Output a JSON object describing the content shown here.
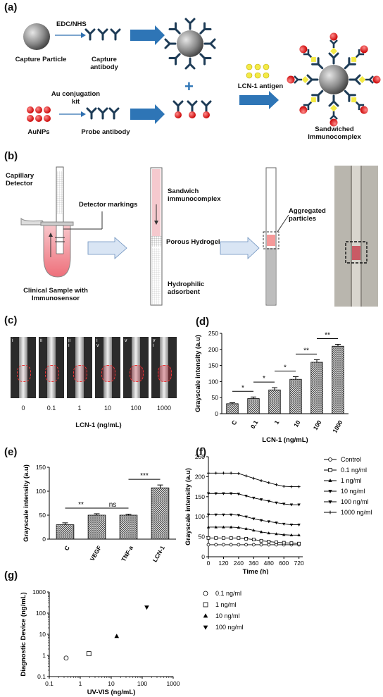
{
  "panels": {
    "a": {
      "label": "(a)",
      "edc": "EDC/NHS",
      "capture_particle": "Capture Particle",
      "capture_antibody": "Capture\nantibody",
      "au_conj": "Au conjugation\nkit",
      "aunps": "AuNPs",
      "probe_antibody": "Probe antibody",
      "lcn1_antigen": "LCN-1 antigen",
      "sandwiched": "Sandwiched\nImmunocomplex"
    },
    "b": {
      "label": "(b)",
      "capillary_detector": "Capillary\nDetector",
      "detector_markings": "Detector markings",
      "clinical_sample": "Clinical Sample with\nImmunosensor",
      "sandwich_complex": "Sandwich\nimmunocomplex",
      "porous_hydrogel": "Porous Hydrogel",
      "hydrophilic": "Hydrophilic\nadsorbent",
      "aggregated": "Aggregated\nparticles"
    },
    "c": {
      "label": "(c)",
      "numerals": [
        "i",
        "ii",
        "ii\ni",
        "i\nv",
        "v",
        "v\ni"
      ],
      "concentrations": [
        "0",
        "0.1",
        "1",
        "10",
        "100",
        "1000"
      ],
      "xlabel": "LCN-1 (ng/mL)"
    },
    "d": {
      "label": "(d)"
    },
    "e": {
      "label": "(e)"
    },
    "f": {
      "label": "(f)"
    },
    "g": {
      "label": "(g)"
    }
  },
  "chart_data": [
    {
      "id": "d",
      "type": "bar",
      "categories": [
        "C",
        "0.1",
        "1",
        "10",
        "100",
        "1000"
      ],
      "values": [
        31,
        47,
        74,
        107,
        160,
        210
      ],
      "errors": [
        3,
        5,
        7,
        8,
        8,
        6
      ],
      "significance": [
        [
          "*",
          0,
          1
        ],
        [
          "*",
          1,
          2
        ],
        [
          "*",
          2,
          3
        ],
        [
          "**",
          3,
          4
        ],
        [
          "**",
          4,
          5
        ]
      ],
      "ylabel": "Grayscale intensity (a.u)",
      "xlabel": "LCN-1 (ng/mL)",
      "ylim": [
        0,
        250
      ],
      "yticks": [
        0,
        50,
        100,
        150,
        200,
        250
      ]
    },
    {
      "id": "e",
      "type": "bar",
      "categories": [
        "C",
        "VEGF",
        "TNF-a",
        "LCN-1"
      ],
      "values": [
        30,
        50,
        50,
        107
      ],
      "errors": [
        4,
        3,
        2,
        6
      ],
      "significance": [
        [
          "**",
          0,
          1
        ],
        [
          "ns",
          1,
          2
        ],
        [
          "***",
          2,
          3
        ]
      ],
      "ylabel": "Grayscale intensity (a.u)",
      "ylim": [
        0,
        150
      ],
      "yticks": [
        0,
        50,
        100,
        150
      ]
    },
    {
      "id": "f",
      "type": "line",
      "x": [
        0,
        60,
        120,
        180,
        240,
        300,
        360,
        420,
        480,
        540,
        600,
        660,
        720
      ],
      "series": [
        {
          "name": "Control",
          "marker": "circle",
          "values": [
            30,
            30,
            30,
            30,
            30,
            30,
            30,
            30,
            30,
            30,
            30,
            30,
            30
          ]
        },
        {
          "name": "0.1 ng/ml",
          "marker": "square",
          "values": [
            47,
            47,
            47,
            47,
            47,
            45,
            43,
            40,
            38,
            36,
            35,
            34,
            33
          ]
        },
        {
          "name": "1 ng/ml",
          "marker": "triangle-up",
          "values": [
            74,
            74,
            74,
            74,
            73,
            70,
            66,
            62,
            59,
            57,
            55,
            54,
            54
          ]
        },
        {
          "name": "10 ng/ml",
          "marker": "triangle-down",
          "values": [
            105,
            105,
            105,
            105,
            104,
            100,
            95,
            91,
            88,
            85,
            82,
            80,
            80
          ]
        },
        {
          "name": "100 ng/ml",
          "marker": "triangle-down",
          "values": [
            158,
            158,
            158,
            158,
            157,
            152,
            147,
            143,
            139,
            135,
            132,
            130,
            130
          ]
        },
        {
          "name": "1000 ng/ml",
          "marker": "plus",
          "values": [
            209,
            209,
            209,
            209,
            208,
            202,
            196,
            190,
            185,
            180,
            176,
            175,
            175
          ]
        }
      ],
      "ylabel": "Grayscale intensity (a.u)",
      "xlabel": "Time (h)",
      "xlim": [
        0,
        750
      ],
      "ylim": [
        0,
        250
      ],
      "xticks": [
        0,
        120,
        240,
        360,
        480,
        600,
        720
      ],
      "yticks": [
        0,
        50,
        100,
        150,
        200,
        250
      ],
      "legend": "right"
    },
    {
      "id": "g",
      "type": "scatter",
      "series": [
        {
          "name": "0.1 ng/ml",
          "marker": "circle",
          "x": 0.35,
          "y": 0.75
        },
        {
          "name": "1 ng/ml",
          "marker": "square",
          "x": 1.9,
          "y": 1.2
        },
        {
          "name": "10 ng/ml",
          "marker": "triangle-up",
          "x": 15,
          "y": 8
        },
        {
          "name": "100 ng/ml",
          "marker": "triangle-down",
          "x": 140,
          "y": 190
        }
      ],
      "xlabel": "UV-VIS (ng/mL)",
      "ylabel": "Diagnostic Device (ng/mL)",
      "xscale": "log",
      "yscale": "log",
      "xlim": [
        0.1,
        1000
      ],
      "ylim": [
        0.1,
        1000
      ],
      "xticks": [
        "0.1",
        "1",
        "10",
        "100",
        "1000"
      ],
      "yticks": [
        "0.1",
        "1",
        "10",
        "100",
        "1000"
      ],
      "legend": "right"
    }
  ]
}
